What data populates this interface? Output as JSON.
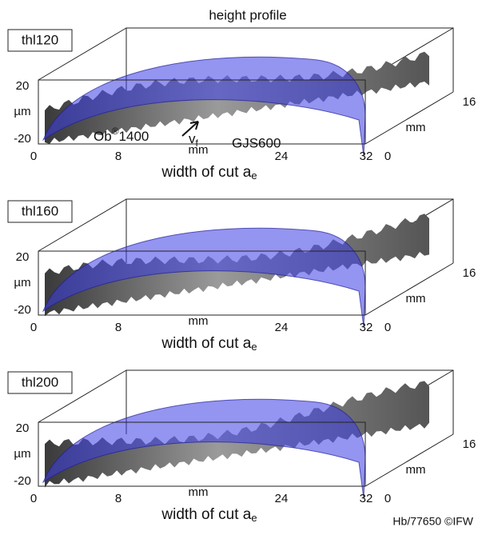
{
  "title": "height profile",
  "panels": [
    {
      "label": "thl120",
      "z_axis": {
        "ticks": [
          "20",
          "-20"
        ],
        "unit": "µm"
      },
      "x_axis": {
        "ticks": [
          "0",
          "8",
          "24",
          "32"
        ],
        "unit": "mm",
        "label": "width of cut a",
        "label_sub": "e"
      },
      "y_axis": {
        "ticks": [
          "0",
          "16"
        ],
        "unit": "mm"
      },
      "annotations": {
        "material_1": "Ob",
        "material_1_sup": "®",
        "material_1_rest": "1400",
        "feed": "v",
        "feed_sub": "f",
        "material_2": "GJS600"
      }
    },
    {
      "label": "thl160",
      "z_axis": {
        "ticks": [
          "20",
          "-20"
        ],
        "unit": "µm"
      },
      "x_axis": {
        "ticks": [
          "0",
          "8",
          "24",
          "32"
        ],
        "unit": "mm",
        "label": "width of cut a",
        "label_sub": "e"
      },
      "y_axis": {
        "ticks": [
          "0",
          "16"
        ],
        "unit": "mm"
      }
    },
    {
      "label": "thl200",
      "z_axis": {
        "ticks": [
          "20",
          "-20"
        ],
        "unit": "µm"
      },
      "x_axis": {
        "ticks": [
          "0",
          "8",
          "24",
          "32"
        ],
        "unit": "mm",
        "label": "width of cut a",
        "label_sub": "e"
      },
      "y_axis": {
        "ticks": [
          "0",
          "16"
        ],
        "unit": "mm"
      }
    }
  ],
  "footer": "Hb/77650 ©IFW"
}
